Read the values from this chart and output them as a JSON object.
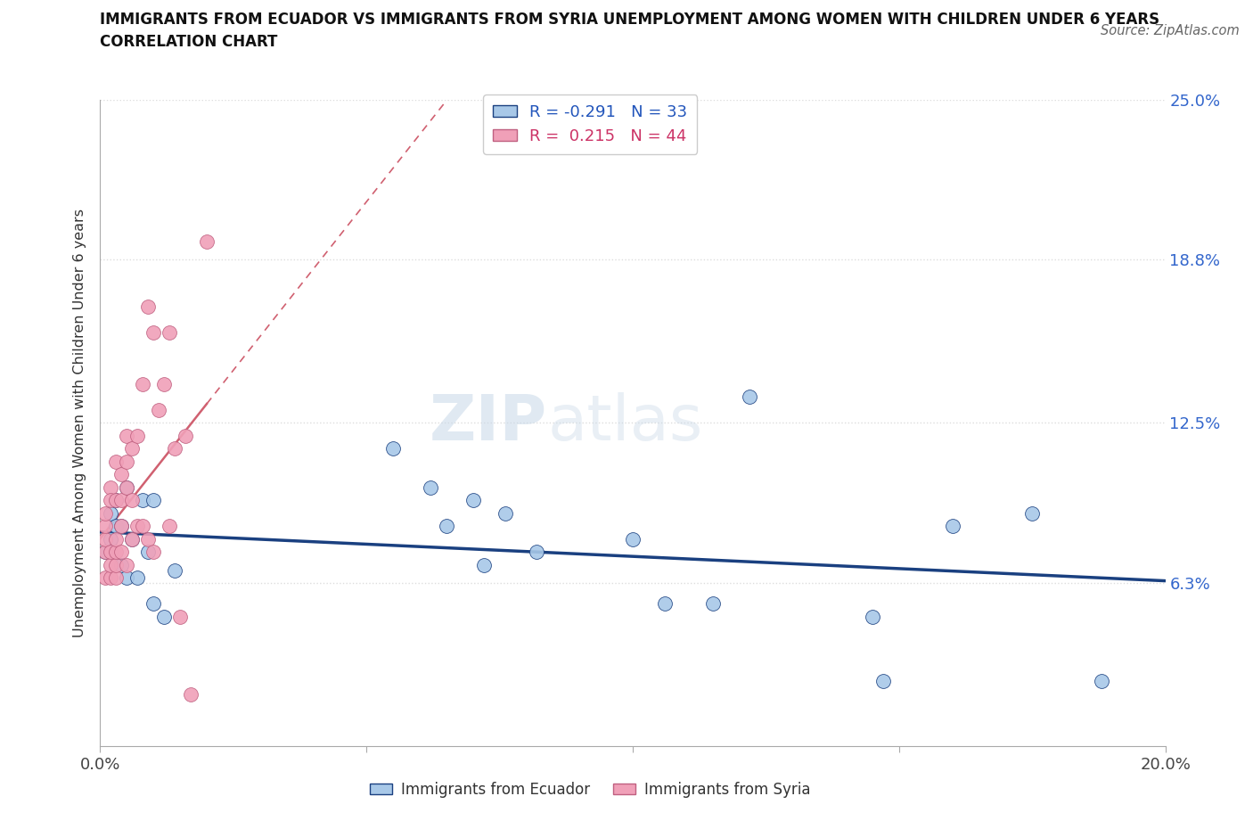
{
  "title_line1": "IMMIGRANTS FROM ECUADOR VS IMMIGRANTS FROM SYRIA UNEMPLOYMENT AMONG WOMEN WITH CHILDREN UNDER 6 YEARS",
  "title_line2": "CORRELATION CHART",
  "source": "Source: ZipAtlas.com",
  "ylabel": "Unemployment Among Women with Children Under 6 years",
  "legend1_label": "Immigrants from Ecuador",
  "legend2_label": "Immigrants from Syria",
  "R_ecuador": -0.291,
  "N_ecuador": 33,
  "R_syria": 0.215,
  "N_syria": 44,
  "xlim": [
    0.0,
    0.2
  ],
  "ylim": [
    0.0,
    0.25
  ],
  "yticks": [
    0.0,
    0.063,
    0.125,
    0.188,
    0.25
  ],
  "ytick_labels": [
    "",
    "6.3%",
    "12.5%",
    "18.8%",
    "25.0%"
  ],
  "xticks": [
    0.0,
    0.05,
    0.1,
    0.15,
    0.2
  ],
  "xtick_labels": [
    "0.0%",
    "",
    "",
    "",
    "20.0%"
  ],
  "color_ecuador": "#a8c8e8",
  "color_syria": "#f0a0b8",
  "line_color_ecuador": "#1a4080",
  "line_color_syria": "#d06070",
  "watermark_zip": "ZIP",
  "watermark_atlas": "atlas",
  "ecuador_x": [
    0.001,
    0.002,
    0.002,
    0.003,
    0.003,
    0.004,
    0.004,
    0.005,
    0.005,
    0.006,
    0.007,
    0.008,
    0.009,
    0.01,
    0.01,
    0.012,
    0.014,
    0.055,
    0.062,
    0.065,
    0.07,
    0.072,
    0.076,
    0.082,
    0.1,
    0.106,
    0.115,
    0.122,
    0.145,
    0.147,
    0.16,
    0.175,
    0.188
  ],
  "ecuador_y": [
    0.075,
    0.09,
    0.08,
    0.085,
    0.095,
    0.07,
    0.085,
    0.1,
    0.065,
    0.08,
    0.065,
    0.095,
    0.075,
    0.095,
    0.055,
    0.05,
    0.068,
    0.115,
    0.1,
    0.085,
    0.095,
    0.07,
    0.09,
    0.075,
    0.08,
    0.055,
    0.055,
    0.135,
    0.05,
    0.025,
    0.085,
    0.09,
    0.025
  ],
  "syria_x": [
    0.001,
    0.001,
    0.001,
    0.001,
    0.001,
    0.002,
    0.002,
    0.002,
    0.002,
    0.002,
    0.003,
    0.003,
    0.003,
    0.003,
    0.003,
    0.003,
    0.004,
    0.004,
    0.004,
    0.004,
    0.005,
    0.005,
    0.005,
    0.005,
    0.006,
    0.006,
    0.006,
    0.007,
    0.007,
    0.008,
    0.008,
    0.009,
    0.009,
    0.01,
    0.01,
    0.011,
    0.012,
    0.013,
    0.013,
    0.014,
    0.015,
    0.016,
    0.017,
    0.02
  ],
  "syria_y": [
    0.065,
    0.075,
    0.08,
    0.085,
    0.09,
    0.065,
    0.07,
    0.075,
    0.1,
    0.095,
    0.065,
    0.07,
    0.075,
    0.08,
    0.095,
    0.11,
    0.075,
    0.085,
    0.095,
    0.105,
    0.07,
    0.1,
    0.11,
    0.12,
    0.08,
    0.095,
    0.115,
    0.085,
    0.12,
    0.085,
    0.14,
    0.08,
    0.17,
    0.075,
    0.16,
    0.13,
    0.14,
    0.085,
    0.16,
    0.115,
    0.05,
    0.12,
    0.02,
    0.195
  ]
}
